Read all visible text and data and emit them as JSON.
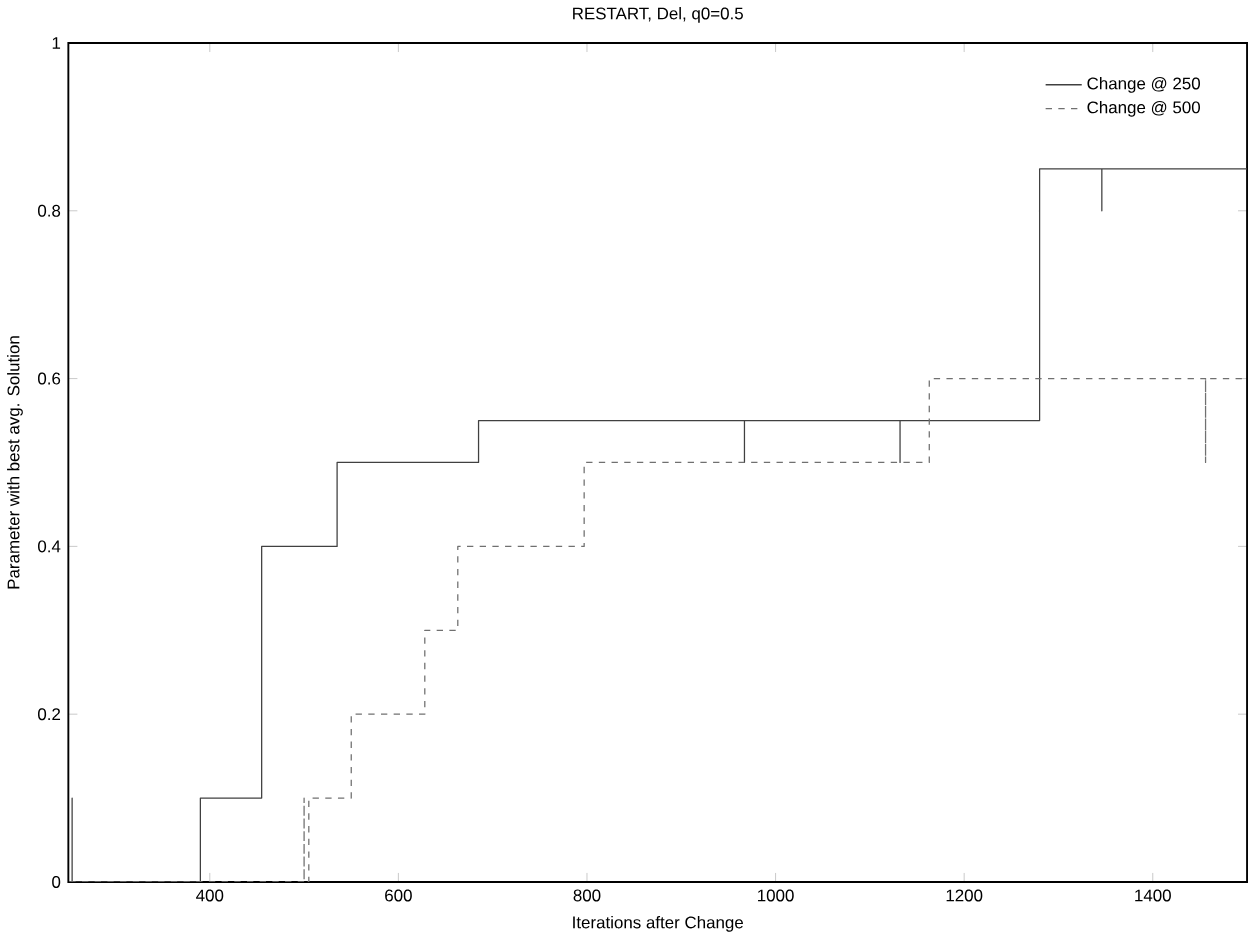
{
  "chart_data": {
    "type": "step",
    "title": "RESTART, Del, q0=0.5",
    "xlabel": "Iterations after Change",
    "ylabel": "Parameter with best avg. Solution",
    "series": [
      {
        "name": "Change @ 250",
        "color": "#404040",
        "line_style": "solid",
        "x": [
          251,
          254,
          254,
          390,
          455,
          535,
          685,
          967,
          967,
          1132,
          1132,
          1280,
          1346,
          1346,
          1500
        ],
        "values": [
          0,
          0.1,
          0,
          0.1,
          0.4,
          0.5,
          0.55,
          0.5,
          0.55,
          0.5,
          0.55,
          0.85,
          0.8,
          0.85,
          0.85
        ]
      },
      {
        "name": "Change @ 500",
        "color": "#707070",
        "line_style": "dashed",
        "x": [
          251,
          500,
          500,
          505,
          550,
          628,
          663,
          797,
          1163,
          1456,
          1456,
          1500
        ],
        "values": [
          0,
          0.1,
          0,
          0.1,
          0.2,
          0.3,
          0.4,
          0.5,
          0.6,
          0.5,
          0.6,
          0.6
        ]
      }
    ],
    "xlim": [
      250,
      1500
    ],
    "ylim": [
      0,
      1
    ],
    "xticks": [
      400,
      600,
      800,
      1000,
      1200,
      1400
    ],
    "yticks": [
      0,
      0.2,
      0.4,
      0.6,
      0.8,
      1
    ],
    "grid": false,
    "legend": "top right",
    "marker": "none"
  }
}
